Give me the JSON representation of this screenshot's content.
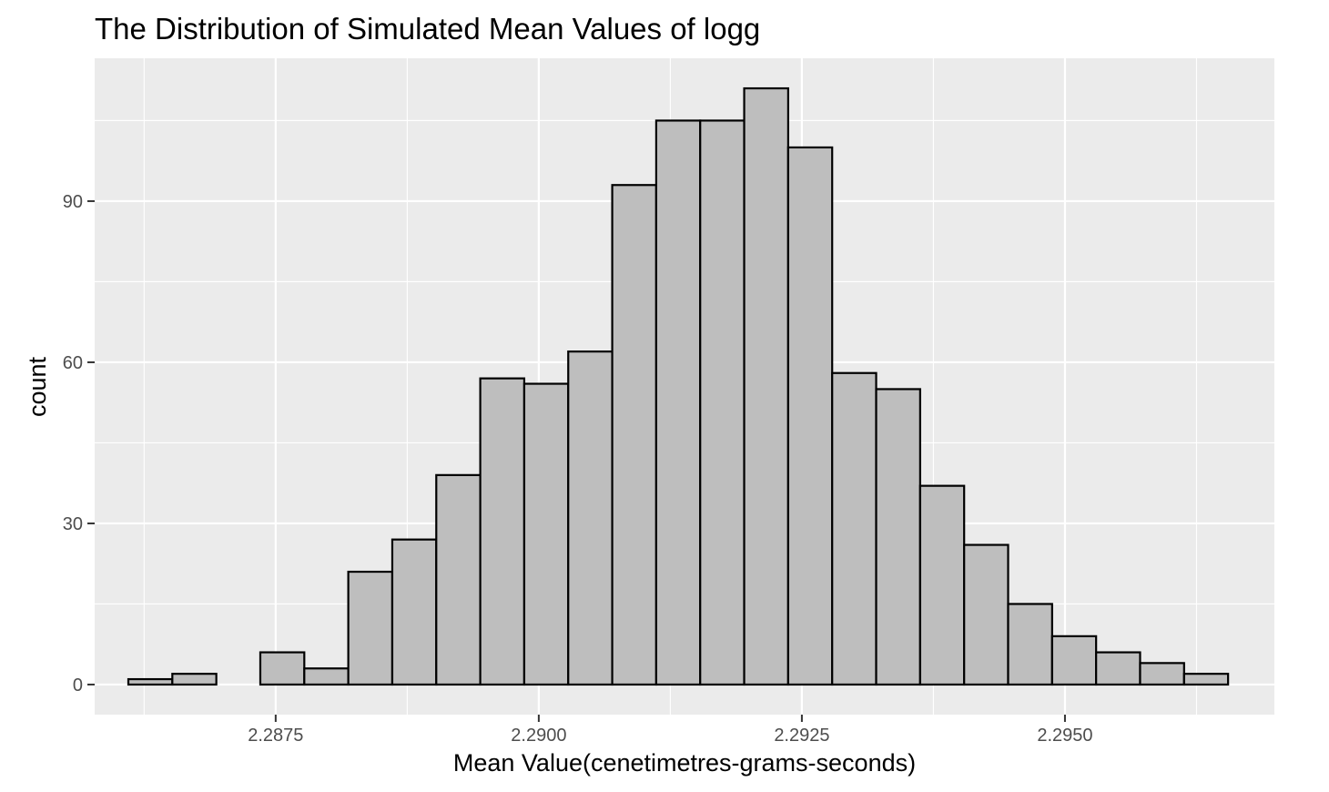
{
  "chart_data": {
    "type": "bar",
    "title": "The Distribution of Simulated Mean Values of logg",
    "xlabel": "Mean Value(cenetimetres-grams-seconds)",
    "ylabel": "count",
    "xlim": [
      2.28578,
      2.29699
    ],
    "ylim": [
      -5.6,
      116.6
    ],
    "x_ticks": [
      2.2875,
      2.29,
      2.2925,
      2.295
    ],
    "x_tick_labels": [
      "2.2875",
      "2.2900",
      "2.2925",
      "2.2950"
    ],
    "y_ticks": [
      0,
      30,
      60,
      90
    ],
    "y_tick_labels": [
      "0",
      "30",
      "60",
      "90"
    ],
    "grid": true,
    "bin_start": 2.2861,
    "bin_width": 0.000418,
    "values": [
      1,
      2,
      0,
      6,
      3,
      21,
      27,
      39,
      57,
      56,
      62,
      93,
      105,
      105,
      111,
      100,
      58,
      55,
      37,
      26,
      15,
      9,
      6,
      4,
      2
    ],
    "fill_color": "#bebebe",
    "outline_color": "#000000",
    "panel_color": "#ebebeb"
  }
}
